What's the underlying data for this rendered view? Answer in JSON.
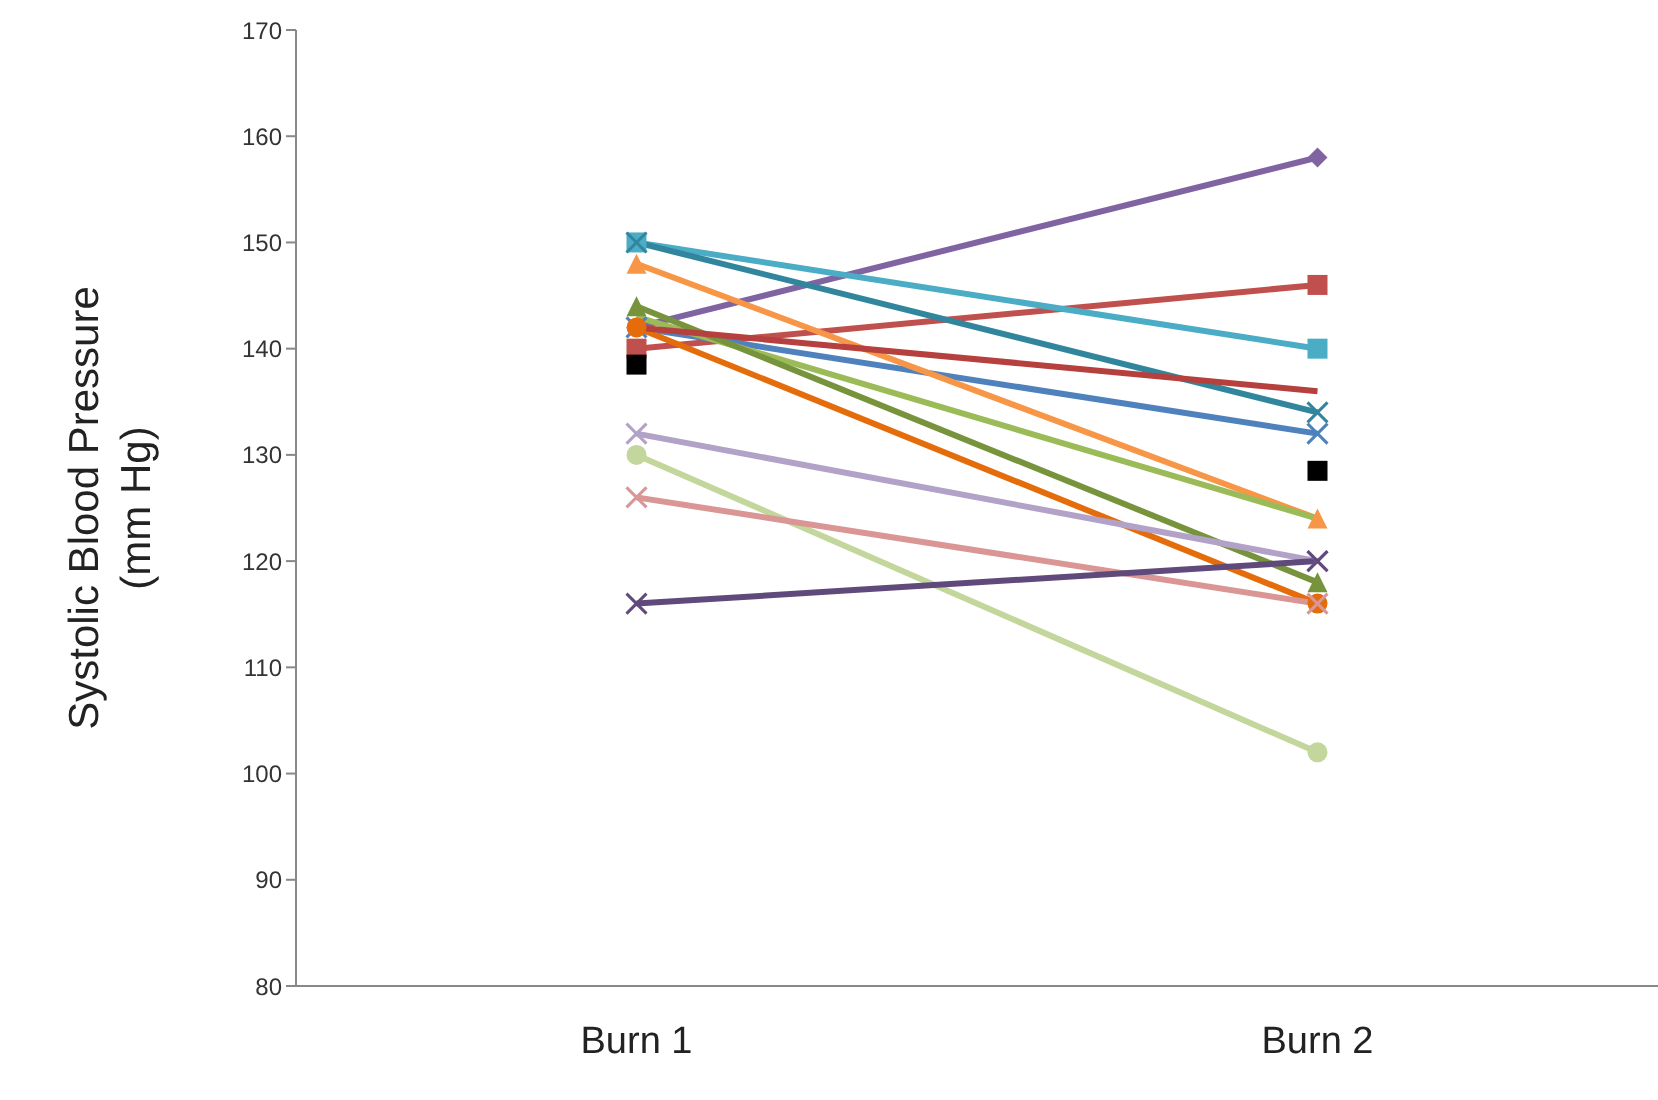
{
  "chart_data": {
    "type": "line",
    "ylabel": "Systolic Blood Pressure\n(mm Hg)",
    "categories": [
      "Burn 1",
      "Burn 2"
    ],
    "ylim": [
      80,
      170
    ],
    "yticks": [
      80,
      90,
      100,
      110,
      120,
      130,
      140,
      150,
      160,
      170
    ],
    "grid": false,
    "legend": false,
    "series": [
      {
        "color": "#8064a2",
        "marker": "diamond",
        "values": [
          142,
          158
        ]
      },
      {
        "color": "#c0504d",
        "marker": "square",
        "values": [
          140,
          146
        ]
      },
      {
        "color": "#4bacc6",
        "marker": "square",
        "values": [
          150,
          140
        ]
      },
      {
        "color": "#31859c",
        "marker": "cross",
        "values": [
          150,
          134
        ]
      },
      {
        "color": "#4f81bd",
        "marker": "cross",
        "values": [
          142,
          132
        ]
      },
      {
        "color": "#f79646",
        "marker": "triangle",
        "values": [
          148,
          124
        ]
      },
      {
        "color": "#9bbb59",
        "marker": "none",
        "values": [
          143,
          124
        ]
      },
      {
        "color": "#77933c",
        "marker": "triangle",
        "values": [
          144,
          118
        ]
      },
      {
        "color": "#e46c0a",
        "marker": "circle",
        "values": [
          142,
          116
        ]
      },
      {
        "color": "#b3a2c7",
        "marker": "cross",
        "values": [
          132,
          120
        ]
      },
      {
        "color": "#c3d69b",
        "marker": "circle",
        "values": [
          130,
          102
        ]
      },
      {
        "color": "#d99694",
        "marker": "cross",
        "values": [
          126,
          116
        ]
      },
      {
        "color": "#604a7b",
        "marker": "cross",
        "values": [
          116,
          120
        ]
      },
      {
        "color": "#b6403d",
        "marker": "none",
        "values": [
          142,
          136
        ]
      },
      {
        "type": "scatter",
        "color": "#000000",
        "marker": "square",
        "values": [
          138.5,
          128.5
        ]
      }
    ]
  }
}
